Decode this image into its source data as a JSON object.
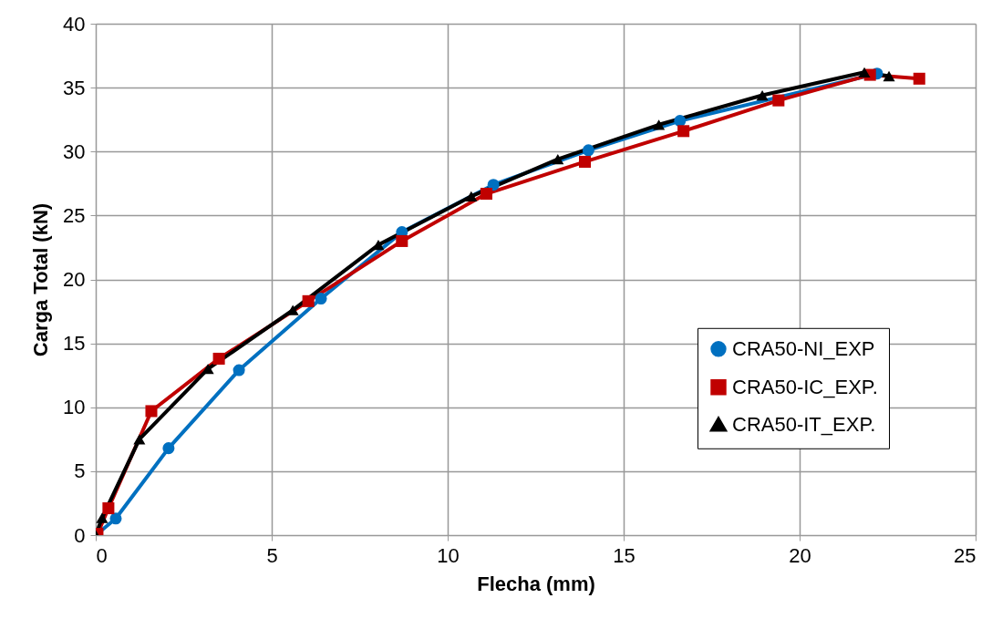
{
  "chart_data": {
    "type": "line",
    "xlabel": "Flecha (mm)",
    "ylabel": "Carga Total (kN)",
    "xlim": [
      0,
      25
    ],
    "ylim": [
      0,
      40
    ],
    "xticks": [
      0,
      5,
      10,
      15,
      20,
      25
    ],
    "yticks": [
      0,
      5,
      10,
      15,
      20,
      25,
      30,
      35,
      40
    ],
    "grid": true,
    "legend": "right",
    "series": [
      {
        "name": "CRA50-NI_EXP",
        "color": "#0070c0",
        "marker": "circle",
        "x": [
          0,
          0.57,
          2.07,
          4.07,
          6.4,
          8.7,
          11.3,
          14.0,
          16.6,
          22.2
        ],
        "values": [
          0,
          1.3,
          6.8,
          12.9,
          18.5,
          23.7,
          27.4,
          30.1,
          32.4,
          36.1
        ]
      },
      {
        "name": "CRA50-IC_EXP.",
        "color": "#c00000",
        "marker": "square",
        "x": [
          0.05,
          0.36,
          1.58,
          3.5,
          6.04,
          8.7,
          11.1,
          13.9,
          16.7,
          19.4,
          22.0,
          23.4
        ],
        "values": [
          0.1,
          2.1,
          9.7,
          13.8,
          18.3,
          23.0,
          26.7,
          29.2,
          31.6,
          34.0,
          36.0,
          35.7
        ]
      },
      {
        "name": "CRA50-IT_EXP.",
        "color": "#000000",
        "marker": "triangle",
        "x": [
          0,
          0.18,
          1.24,
          3.19,
          5.6,
          8.03,
          10.67,
          13.13,
          16.0,
          18.94,
          21.84,
          22.54
        ],
        "values": [
          0,
          1.35,
          7.5,
          13.0,
          17.6,
          22.7,
          26.5,
          29.4,
          32.1,
          34.4,
          36.2,
          35.9
        ]
      }
    ]
  }
}
